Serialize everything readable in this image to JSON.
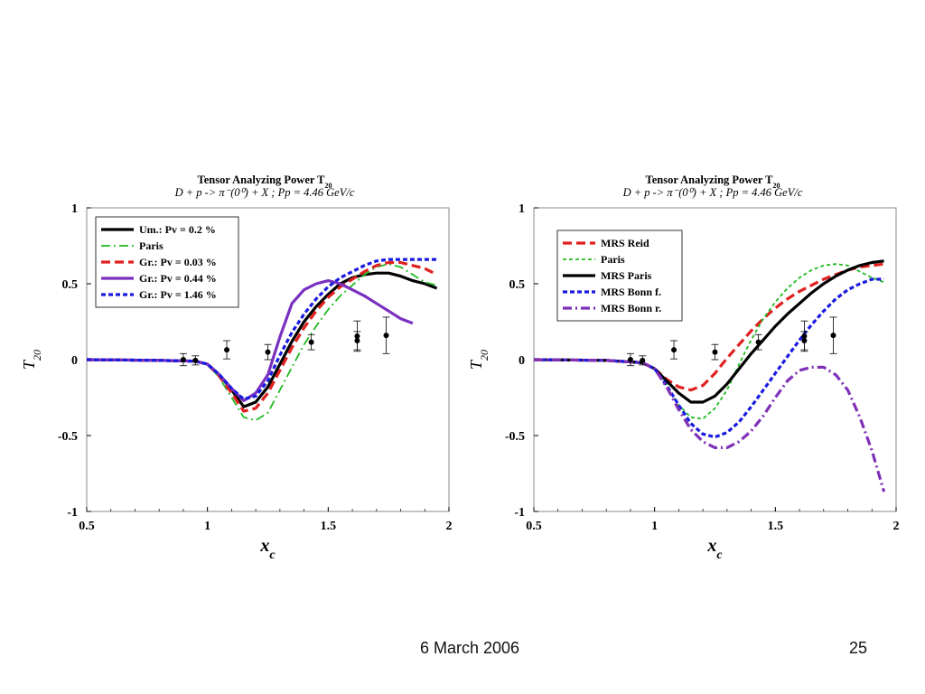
{
  "slide": {
    "date": "6 March 2006",
    "page_number": "25"
  },
  "colors": {
    "black": "#000000",
    "green": "#22bb22",
    "red": "#e02020",
    "purple": "#7a30c0",
    "blue": "#1a1ae0",
    "violet": "#8030b8"
  },
  "chart_data": [
    {
      "type": "line",
      "title": "Tensor Analyzing Power T20",
      "title_main": "Tensor Analyzing Power T",
      "title_sub": "20",
      "subtitle": "D + p -> π⁻(0⁰) + X ;  Pp = 4.46 GeV/c",
      "xlabel": "xc",
      "ylabel": "T20",
      "xlim": [
        0.5,
        2
      ],
      "ylim": [
        -1,
        1
      ],
      "xticks": [
        "0.5",
        "1",
        "1.5",
        "2"
      ],
      "yticks": [
        "1",
        "0.5",
        "0",
        "-0.5",
        "-1"
      ],
      "legend_position": "top-left",
      "series": [
        {
          "name": "Um.: Pv = 0.2 %",
          "color": "#000000",
          "style": "solid",
          "width": 3.2,
          "x": [
            0.5,
            0.8,
            0.95,
            1.0,
            1.05,
            1.1,
            1.15,
            1.2,
            1.25,
            1.3,
            1.35,
            1.4,
            1.45,
            1.5,
            1.55,
            1.6,
            1.65,
            1.7,
            1.75,
            1.8,
            1.85,
            1.9,
            1.95
          ],
          "y": [
            0,
            -0.005,
            -0.01,
            -0.03,
            -0.1,
            -0.2,
            -0.31,
            -0.28,
            -0.18,
            -0.03,
            0.12,
            0.25,
            0.35,
            0.43,
            0.5,
            0.54,
            0.56,
            0.57,
            0.57,
            0.55,
            0.52,
            0.5,
            0.47
          ]
        },
        {
          "name": "Paris",
          "color": "#22bb22",
          "style": "dashdot",
          "width": 1.8,
          "x": [
            0.5,
            0.8,
            0.95,
            1.0,
            1.05,
            1.1,
            1.15,
            1.2,
            1.25,
            1.3,
            1.35,
            1.4,
            1.45,
            1.5,
            1.55,
            1.6,
            1.65,
            1.7,
            1.75,
            1.8,
            1.85,
            1.9,
            1.95
          ],
          "y": [
            0,
            -0.005,
            -0.01,
            -0.03,
            -0.12,
            -0.25,
            -0.38,
            -0.4,
            -0.35,
            -0.2,
            -0.05,
            0.1,
            0.22,
            0.33,
            0.42,
            0.49,
            0.56,
            0.61,
            0.63,
            0.61,
            0.56,
            0.51,
            0.49
          ]
        },
        {
          "name": "Gr.: Pv = 0.03 %",
          "color": "#e02020",
          "style": "dash",
          "width": 3.2,
          "x": [
            0.5,
            0.8,
            0.95,
            1.0,
            1.05,
            1.1,
            1.15,
            1.2,
            1.25,
            1.3,
            1.35,
            1.4,
            1.45,
            1.5,
            1.55,
            1.6,
            1.65,
            1.7,
            1.75,
            1.8,
            1.85,
            1.9,
            1.95
          ],
          "y": [
            0,
            -0.005,
            -0.01,
            -0.03,
            -0.11,
            -0.22,
            -0.34,
            -0.32,
            -0.22,
            -0.07,
            0.08,
            0.21,
            0.32,
            0.41,
            0.48,
            0.53,
            0.58,
            0.62,
            0.64,
            0.64,
            0.62,
            0.6,
            0.56
          ]
        },
        {
          "name": "Gr.: Pv = 0.44 %",
          "color": "#7a30c0",
          "style": "solid",
          "width": 3.2,
          "x": [
            0.5,
            0.8,
            0.95,
            1.0,
            1.05,
            1.1,
            1.15,
            1.2,
            1.25,
            1.3,
            1.35,
            1.4,
            1.45,
            1.5,
            1.55,
            1.6,
            1.65,
            1.7,
            1.75,
            1.8,
            1.85
          ],
          "y": [
            0,
            -0.005,
            -0.01,
            -0.03,
            -0.1,
            -0.19,
            -0.27,
            -0.22,
            -0.1,
            0.15,
            0.37,
            0.46,
            0.5,
            0.52,
            0.5,
            0.46,
            0.42,
            0.37,
            0.32,
            0.27,
            0.24
          ]
        },
        {
          "name": "Gr.: Pv = 1.46 %",
          "color": "#1a1ae0",
          "style": "dot",
          "width": 3.2,
          "x": [
            0.5,
            0.8,
            0.95,
            1.0,
            1.05,
            1.1,
            1.15,
            1.2,
            1.25,
            1.3,
            1.35,
            1.4,
            1.45,
            1.5,
            1.55,
            1.6,
            1.65,
            1.7,
            1.75,
            1.8,
            1.85,
            1.9,
            1.95
          ],
          "y": [
            0,
            -0.005,
            -0.01,
            -0.03,
            -0.1,
            -0.19,
            -0.26,
            -0.24,
            -0.14,
            0.03,
            0.18,
            0.3,
            0.4,
            0.48,
            0.54,
            0.58,
            0.62,
            0.65,
            0.66,
            0.66,
            0.66,
            0.66,
            0.66
          ]
        }
      ],
      "data_points": [
        {
          "x": 0.9,
          "y": 0.0,
          "err": 0.04
        },
        {
          "x": 0.95,
          "y": -0.005,
          "err": 0.03
        },
        {
          "x": 1.08,
          "y": 0.065,
          "err": 0.06
        },
        {
          "x": 1.25,
          "y": 0.05,
          "err": 0.05
        },
        {
          "x": 1.43,
          "y": 0.115,
          "err": 0.05
        },
        {
          "x": 1.62,
          "y": 0.125,
          "err": 0.06
        },
        {
          "x": 1.62,
          "y": 0.155,
          "err": 0.1
        },
        {
          "x": 1.74,
          "y": 0.16,
          "err": 0.12
        }
      ]
    },
    {
      "type": "line",
      "title": "Tensor Analyzing Power T20",
      "title_main": "Tensor Analyzing Power T",
      "title_sub": "20",
      "subtitle": "D + p -> π⁻(0⁰) + X ;  Pp = 4.46 GeV/c",
      "xlabel": "xc",
      "ylabel": "T20",
      "xlim": [
        0.5,
        2
      ],
      "ylim": [
        -1,
        1
      ],
      "xticks": [
        "0.5",
        "1",
        "1.5",
        "2"
      ],
      "yticks": [
        "1",
        "0.5",
        "0",
        "-0.5",
        "-1"
      ],
      "legend_position": "top-left",
      "series": [
        {
          "name": "MRS Reid",
          "color": "#e02020",
          "style": "dash",
          "width": 3.2,
          "x": [
            0.5,
            0.8,
            0.95,
            1.0,
            1.05,
            1.1,
            1.15,
            1.2,
            1.25,
            1.3,
            1.35,
            1.4,
            1.45,
            1.5,
            1.55,
            1.6,
            1.65,
            1.7,
            1.75,
            1.8,
            1.85,
            1.9,
            1.95
          ],
          "y": [
            0,
            -0.005,
            -0.02,
            -0.06,
            -0.13,
            -0.18,
            -0.2,
            -0.17,
            -0.09,
            0.01,
            0.1,
            0.19,
            0.27,
            0.34,
            0.4,
            0.45,
            0.49,
            0.53,
            0.56,
            0.59,
            0.61,
            0.62,
            0.63
          ]
        },
        {
          "name": "Paris",
          "color": "#22bb22",
          "style": "shortdash",
          "width": 1.8,
          "x": [
            0.5,
            0.8,
            0.95,
            1.0,
            1.05,
            1.1,
            1.15,
            1.2,
            1.25,
            1.3,
            1.35,
            1.4,
            1.45,
            1.5,
            1.55,
            1.6,
            1.65,
            1.7,
            1.75,
            1.8,
            1.85,
            1.9,
            1.95
          ],
          "y": [
            0,
            -0.005,
            -0.02,
            -0.06,
            -0.16,
            -0.3,
            -0.38,
            -0.39,
            -0.32,
            -0.2,
            -0.03,
            0.13,
            0.27,
            0.38,
            0.47,
            0.54,
            0.59,
            0.62,
            0.63,
            0.62,
            0.58,
            0.54,
            0.51
          ]
        },
        {
          "name": "MRS Paris",
          "color": "#000000",
          "style": "solid",
          "width": 3.2,
          "x": [
            0.5,
            0.8,
            0.95,
            1.0,
            1.05,
            1.1,
            1.15,
            1.2,
            1.25,
            1.3,
            1.35,
            1.4,
            1.45,
            1.5,
            1.55,
            1.6,
            1.65,
            1.7,
            1.75,
            1.8,
            1.85,
            1.9,
            1.95
          ],
          "y": [
            0,
            -0.005,
            -0.02,
            -0.06,
            -0.14,
            -0.22,
            -0.28,
            -0.28,
            -0.24,
            -0.16,
            -0.06,
            0.04,
            0.13,
            0.22,
            0.3,
            0.37,
            0.44,
            0.5,
            0.55,
            0.59,
            0.62,
            0.64,
            0.65
          ]
        },
        {
          "name": "MRS Bonn f.",
          "color": "#1a1ae0",
          "style": "dot",
          "width": 3.2,
          "x": [
            0.5,
            0.8,
            0.95,
            1.0,
            1.05,
            1.1,
            1.15,
            1.2,
            1.25,
            1.3,
            1.35,
            1.4,
            1.45,
            1.5,
            1.55,
            1.6,
            1.65,
            1.7,
            1.75,
            1.8,
            1.85,
            1.9,
            1.95
          ],
          "y": [
            0,
            -0.005,
            -0.02,
            -0.06,
            -0.17,
            -0.3,
            -0.42,
            -0.49,
            -0.51,
            -0.48,
            -0.41,
            -0.31,
            -0.2,
            -0.09,
            0.02,
            0.13,
            0.23,
            0.32,
            0.4,
            0.46,
            0.5,
            0.53,
            0.53
          ]
        },
        {
          "name": "MRS Bonn r.",
          "color": "#8030b8",
          "style": "dashdot",
          "width": 3.2,
          "x": [
            0.5,
            0.8,
            0.95,
            1.0,
            1.05,
            1.1,
            1.15,
            1.2,
            1.25,
            1.3,
            1.35,
            1.4,
            1.45,
            1.5,
            1.55,
            1.6,
            1.65,
            1.7,
            1.75,
            1.8,
            1.85,
            1.9,
            1.95
          ],
          "y": [
            0,
            -0.005,
            -0.02,
            -0.06,
            -0.18,
            -0.33,
            -0.46,
            -0.54,
            -0.58,
            -0.58,
            -0.54,
            -0.47,
            -0.37,
            -0.25,
            -0.14,
            -0.07,
            -0.05,
            -0.05,
            -0.1,
            -0.2,
            -0.38,
            -0.6,
            -0.87
          ]
        }
      ],
      "data_points": [
        {
          "x": 0.9,
          "y": 0.0,
          "err": 0.04
        },
        {
          "x": 0.95,
          "y": -0.005,
          "err": 0.03
        },
        {
          "x": 1.08,
          "y": 0.065,
          "err": 0.06
        },
        {
          "x": 1.25,
          "y": 0.05,
          "err": 0.05
        },
        {
          "x": 1.43,
          "y": 0.115,
          "err": 0.05
        },
        {
          "x": 1.62,
          "y": 0.125,
          "err": 0.06
        },
        {
          "x": 1.62,
          "y": 0.155,
          "err": 0.1
        },
        {
          "x": 1.74,
          "y": 0.16,
          "err": 0.12
        }
      ]
    }
  ]
}
